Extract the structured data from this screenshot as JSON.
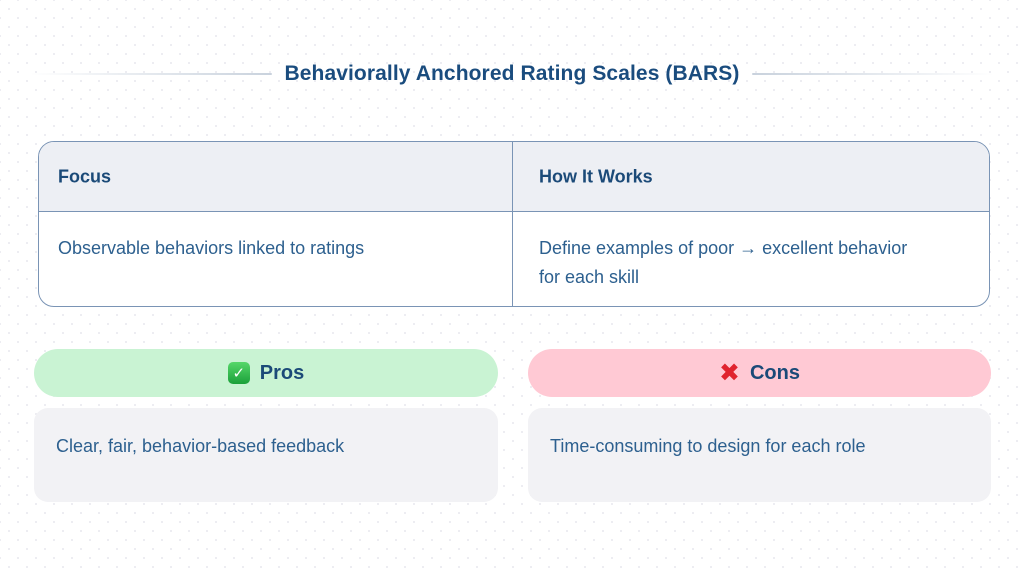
{
  "page": {
    "title": "Behaviorally Anchored Rating Scales (BARS)"
  },
  "table": {
    "headers": [
      "Focus",
      "How It Works"
    ],
    "row": [
      "Observable behaviors linked to ratings",
      "Define examples of poor → excellent behavior for each skill"
    ]
  },
  "pros": {
    "icon": "check-icon",
    "icon_glyph": "✓",
    "label": "Pros",
    "body": "Clear, fair, behavior-based feedback"
  },
  "cons": {
    "icon": "cross-icon",
    "icon_glyph": "✖",
    "label": "Cons",
    "body": "Time-consuming to design for each role"
  },
  "colors": {
    "title_navy": "#1a4c7e",
    "body_navy": "#2d608f",
    "table_border": "#7a94b5",
    "table_header_bg": "#edeff4",
    "pros_pill_bg": "#c9f3d3",
    "cons_pill_bg": "#ffc9d4",
    "check_green": "#1ba03a",
    "cross_red": "#e0232e",
    "card_bg": "#f2f2f5",
    "divider_line": "#c9d2dd"
  }
}
